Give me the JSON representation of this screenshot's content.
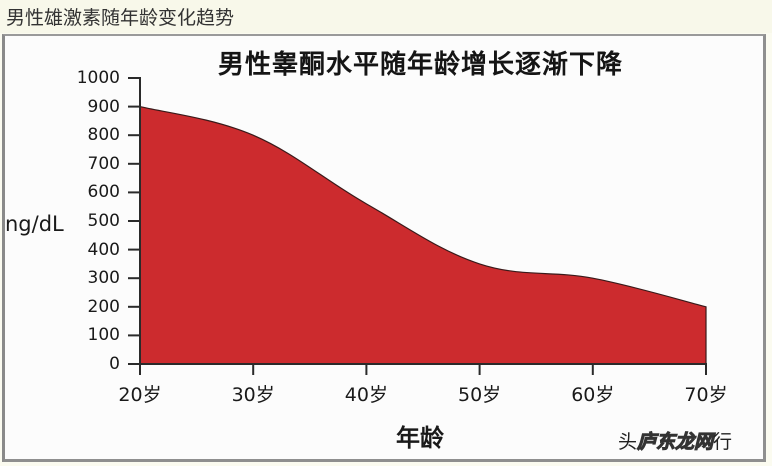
{
  "caption": {
    "text": "男性雄激素随年龄变化趋势"
  },
  "watermark": {
    "prefix": "头",
    "middle": "庐东龙网",
    "suffix": "行"
  },
  "colors": {
    "top_blue": "#1481b0",
    "mid_slate": "#55607f",
    "bottom_red": "#cc2b2e",
    "axis": "#2a2a2a"
  },
  "chart_data": {
    "type": "area",
    "title": "男性睾酮水平随年龄增长逐渐下降",
    "xlabel": "年龄",
    "ylabel": "ng/dL",
    "categories": [
      "20岁",
      "30岁",
      "40岁",
      "50岁",
      "60岁",
      "70岁"
    ],
    "x": [
      20,
      30,
      40,
      50,
      60,
      70
    ],
    "series": [
      {
        "name": "睾酮水平",
        "values": [
          900,
          800,
          560,
          350,
          300,
          200
        ]
      }
    ],
    "yticks": [
      0,
      100,
      200,
      300,
      400,
      500,
      600,
      700,
      800,
      900,
      1000
    ],
    "ylim": [
      0,
      1000
    ],
    "xlim": [
      20,
      70
    ],
    "grid": false,
    "legend": null,
    "fill": "vertical gradient blue (top) to red (bottom)"
  }
}
